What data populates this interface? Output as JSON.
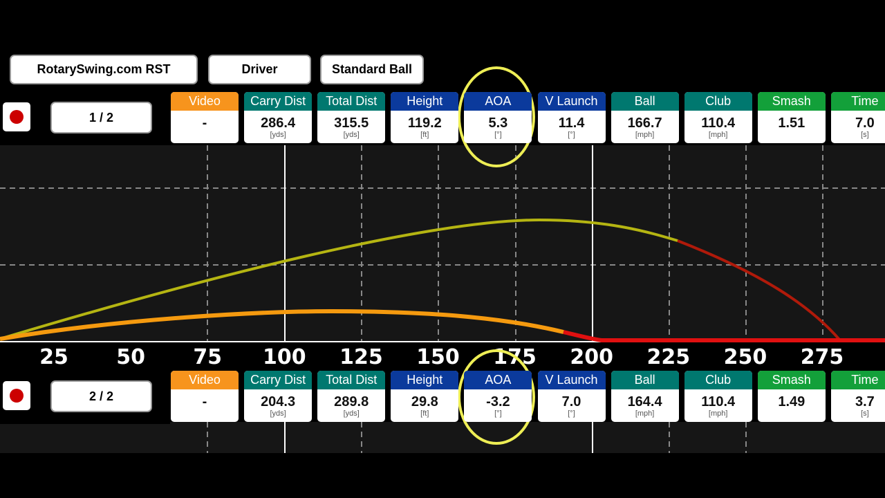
{
  "buttons": [
    "RotarySwing.com RST",
    "Driver",
    "Standard Ball"
  ],
  "shots": [
    {
      "counter": "1 / 2",
      "metrics": [
        {
          "label": "Video",
          "value": "-"
        },
        {
          "label": "Carry Dist",
          "value": "286.4",
          "unit": "[yds]"
        },
        {
          "label": "Total Dist",
          "value": "315.5",
          "unit": "[yds]"
        },
        {
          "label": "Height",
          "value": "119.2",
          "unit": "[ft]"
        },
        {
          "label": "AOA",
          "value": "5.3",
          "unit": "[°]"
        },
        {
          "label": "V Launch",
          "value": "11.4",
          "unit": "[°]"
        },
        {
          "label": "Ball",
          "value": "166.7",
          "unit": "[mph]"
        },
        {
          "label": "Club",
          "value": "110.4",
          "unit": "[mph]"
        },
        {
          "label": "Smash",
          "value": "1.51"
        },
        {
          "label": "Time",
          "value": "7.0",
          "unit": "[s]"
        }
      ]
    },
    {
      "counter": "2 / 2",
      "metrics": [
        {
          "label": "Video",
          "value": "-"
        },
        {
          "label": "Carry Dist",
          "value": "204.3",
          "unit": "[yds]"
        },
        {
          "label": "Total Dist",
          "value": "289.8",
          "unit": "[yds]"
        },
        {
          "label": "Height",
          "value": "29.8",
          "unit": "[ft]"
        },
        {
          "label": "AOA",
          "value": "-3.2",
          "unit": "[°]"
        },
        {
          "label": "V Launch",
          "value": "7.0",
          "unit": "[°]"
        },
        {
          "label": "Ball",
          "value": "164.4",
          "unit": "[mph]"
        },
        {
          "label": "Club",
          "value": "110.4",
          "unit": "[mph]"
        },
        {
          "label": "Smash",
          "value": "1.49"
        },
        {
          "label": "Time",
          "value": "3.7",
          "unit": "[s]"
        }
      ]
    }
  ],
  "distance_axis": [
    25,
    50,
    75,
    100,
    125,
    150,
    175,
    200,
    225,
    250,
    275
  ]
}
